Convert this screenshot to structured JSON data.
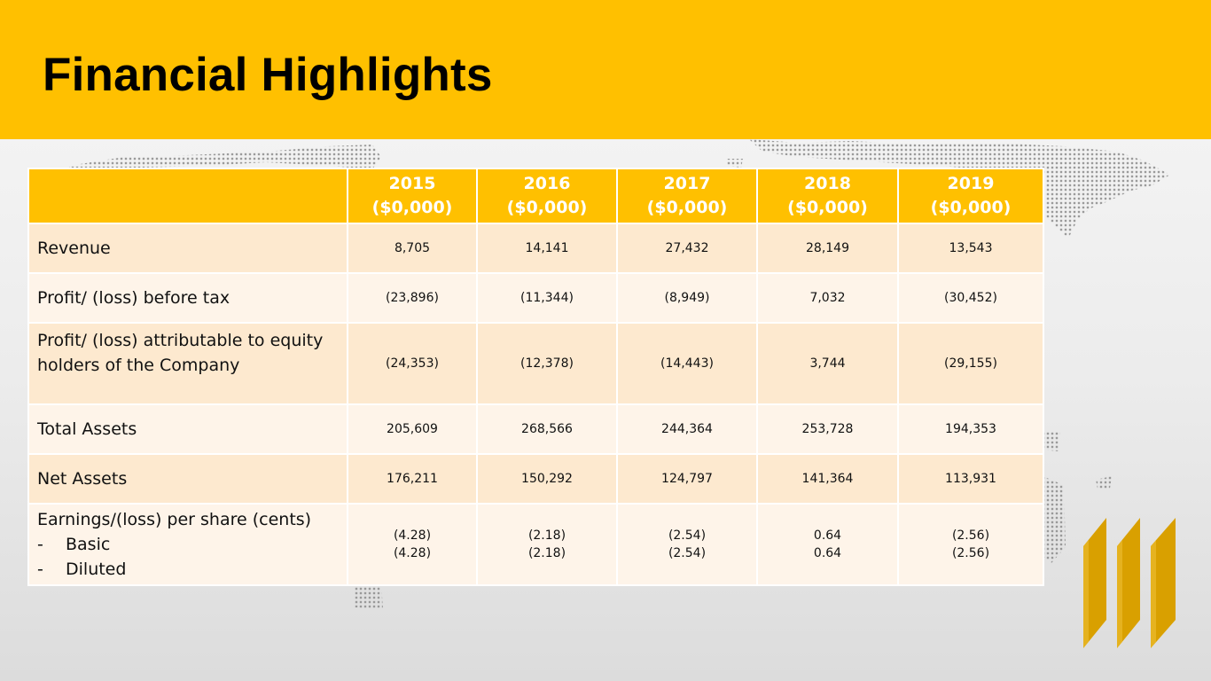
{
  "slide": {
    "title": "Financial Highlights",
    "colors": {
      "accent": "#ffc000",
      "row_dark": "#fde9cf",
      "row_light": "#fef4e9",
      "logo": "#d9a000",
      "map_dots": "#8c8c8c"
    }
  },
  "table": {
    "headers": [
      {
        "year": "2015",
        "unit": "($0,000)"
      },
      {
        "year": "2016",
        "unit": "($0,000)"
      },
      {
        "year": "2017",
        "unit": "($0,000)"
      },
      {
        "year": "2018",
        "unit": "($0,000)"
      },
      {
        "year": "2019",
        "unit": "($0,000)"
      }
    ],
    "rows": [
      {
        "label": "Revenue",
        "values": [
          "8,705",
          "14,141",
          "27,432",
          "28,149",
          "13,543"
        ]
      },
      {
        "label": "Profit/ (loss) before tax",
        "values": [
          "(23,896)",
          "(11,344)",
          "(8,949)",
          "7,032",
          "(30,452)"
        ]
      },
      {
        "label_line1": "Profit/ (loss) attributable to equity",
        "label_line2": "holders of the Company",
        "values": [
          "(24,353)",
          "(12,378)",
          "(14,443)",
          "3,744",
          "(29,155)"
        ]
      },
      {
        "label": "Total Assets",
        "values": [
          "205,609",
          "268,566",
          "244,364",
          "253,728",
          "194,353"
        ]
      },
      {
        "label": "Net Assets",
        "values": [
          "176,211",
          "150,292",
          "124,797",
          "141,364",
          "113,931"
        ]
      },
      {
        "label": "Earnings/(loss) per share (cents)",
        "sub": [
          {
            "dash": "-",
            "label": "Basic"
          },
          {
            "dash": "-",
            "label": "Diluted"
          }
        ],
        "basic": [
          "(4.28)",
          "(2.18)",
          "(2.54)",
          "0.64",
          "(2.56)"
        ],
        "diluted": [
          "(4.28)",
          "(2.18)",
          "(2.54)",
          "0.64",
          "(2.56)"
        ]
      }
    ]
  }
}
